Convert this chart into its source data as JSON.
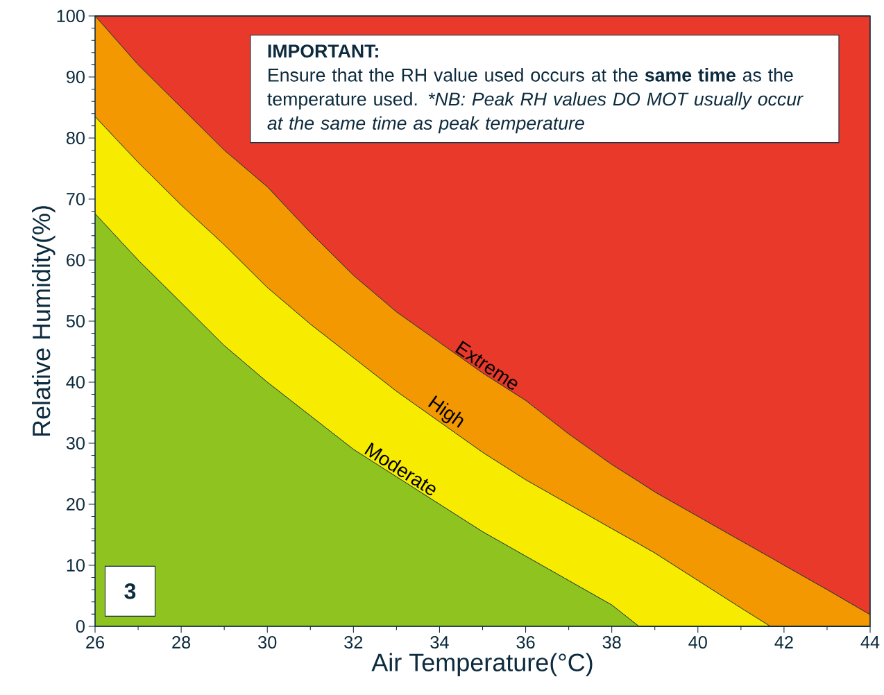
{
  "chart_data": {
    "type": "area",
    "stacked": true,
    "xlabel": "Air Temperature(°C)",
    "ylabel": "Relative Humidity(%)",
    "x": [
      26,
      27,
      28,
      29,
      30,
      31,
      32,
      33,
      34,
      35,
      36,
      37,
      38,
      38.63,
      39,
      40,
      41,
      41.68,
      42,
      43,
      44
    ],
    "xlim": [
      26,
      44
    ],
    "ylim": [
      0,
      100
    ],
    "xticks": [
      26,
      28,
      30,
      32,
      34,
      36,
      38,
      40,
      42,
      44
    ],
    "yticks": [
      0,
      10,
      20,
      30,
      40,
      50,
      60,
      70,
      80,
      90,
      100
    ],
    "series": [
      {
        "color": "#8fc31f",
        "values": [
          67.6,
          60,
          53,
          46,
          40,
          34.5,
          29,
          24.5,
          20,
          15.5,
          11.5,
          7.5,
          3.5,
          0,
          0,
          0,
          0,
          0,
          0,
          0,
          0
        ]
      },
      {
        "name": "Moderate",
        "color": "#f7ec00",
        "values": [
          15.9,
          16,
          16,
          16.5,
          15.5,
          15,
          15,
          14,
          13.5,
          13,
          12.5,
          12.5,
          12.5,
          13.5,
          12,
          7.5,
          3,
          0,
          0,
          0,
          0
        ]
      },
      {
        "name": "High",
        "color": "#f39800",
        "values": [
          16.5,
          16,
          16,
          15.5,
          16.5,
          15,
          13.5,
          13,
          13,
          13,
          13,
          11.5,
          10.5,
          10.2,
          10,
          10.5,
          11,
          11.3,
          10,
          6,
          1.9
        ]
      },
      {
        "name": "Extreme",
        "color": "#e8392a",
        "values": [
          0,
          8,
          15,
          22,
          28,
          35.5,
          42.5,
          48.5,
          53.5,
          58.5,
          63,
          68.5,
          73.5,
          76.3,
          78,
          82,
          86,
          88.7,
          90,
          94,
          98.1
        ]
      }
    ],
    "annotations": [
      "IMPORTANT:",
      "Ensure that the RH value used occurs at the **same time** as the temperature used.",
      "*NB: Peak RH values DO MOT usually occur at the same time as peak temperature",
      "3"
    ]
  }
}
